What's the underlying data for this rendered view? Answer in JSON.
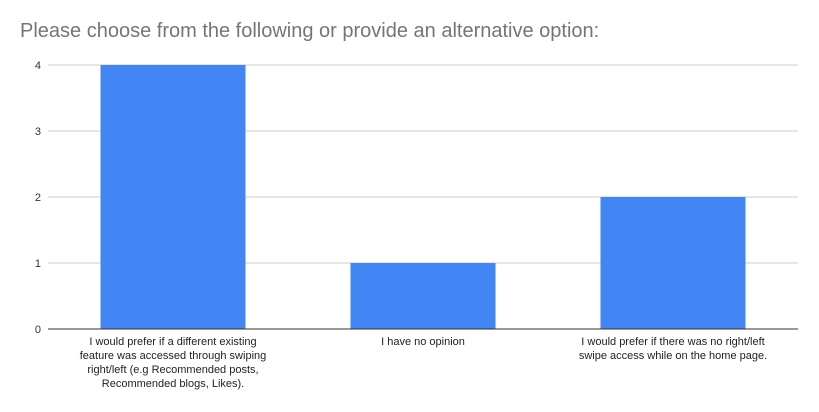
{
  "chart_data": {
    "type": "bar",
    "title": "Please choose from the following or provide an alternative option:",
    "xlabel": "",
    "ylabel": "",
    "categories": [
      [
        "I would prefer if a different existing",
        "feature was accessed through swiping",
        "right/left (e.g Recommended posts,",
        "Recommended blogs, Likes)."
      ],
      [
        "I have no opinion"
      ],
      [
        "I would prefer if there was no right/left",
        "swipe access while on the home page."
      ]
    ],
    "values": [
      4,
      1,
      2
    ],
    "ylim": [
      0,
      4
    ],
    "yticks": [
      "0",
      "1",
      "2",
      "3",
      "4"
    ],
    "grid": true,
    "legend": "none",
    "bar_color": "#4285f4"
  }
}
